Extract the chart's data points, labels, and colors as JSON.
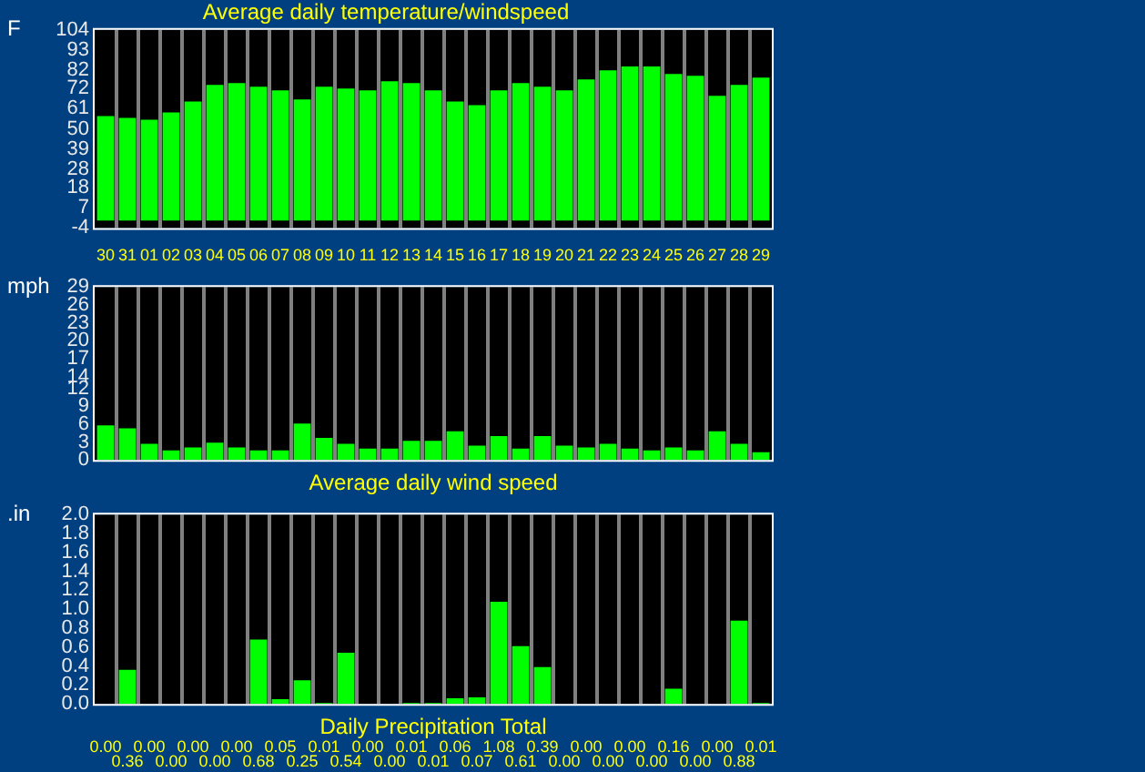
{
  "chart_data": [
    {
      "type": "bar",
      "title": "Average daily temperature/windspeed",
      "ylabel": "F",
      "categories": [
        "30",
        "31",
        "01",
        "02",
        "03",
        "04",
        "05",
        "06",
        "07",
        "08",
        "09",
        "10",
        "11",
        "12",
        "13",
        "14",
        "15",
        "16",
        "17",
        "18",
        "19",
        "20",
        "21",
        "22",
        "23",
        "24",
        "25",
        "26",
        "27",
        "28",
        "29"
      ],
      "values": [
        57,
        56,
        55,
        59,
        65,
        74,
        75,
        73,
        71,
        66,
        73,
        72,
        71,
        76,
        75,
        71,
        65,
        63,
        71,
        75,
        73,
        71,
        77,
        82,
        84,
        84,
        80,
        79,
        68,
        74,
        78
      ],
      "color": "#00ff00",
      "ylim": [
        -4,
        104
      ],
      "yticks": [
        -4,
        7,
        18,
        28,
        39,
        50,
        61,
        72,
        82,
        93,
        104
      ],
      "grid": "x"
    },
    {
      "type": "bar",
      "xlabel": "Average daily wind speed",
      "ylabel": "mph",
      "categories": [
        "30",
        "31",
        "01",
        "02",
        "03",
        "04",
        "05",
        "06",
        "07",
        "08",
        "09",
        "10",
        "11",
        "12",
        "13",
        "14",
        "15",
        "16",
        "17",
        "18",
        "19",
        "20",
        "21",
        "22",
        "23",
        "24",
        "25",
        "26",
        "27",
        "28",
        "29"
      ],
      "values": [
        5.8,
        5.3,
        2.7,
        1.6,
        2.1,
        2.9,
        2.1,
        1.6,
        1.6,
        6.1,
        3.7,
        2.7,
        1.9,
        1.9,
        3.2,
        3.2,
        4.8,
        2.4,
        4.0,
        1.9,
        4.0,
        2.4,
        2.1,
        2.7,
        1.9,
        1.6,
        2.1,
        1.6,
        4.8,
        2.7,
        1.3
      ],
      "color": "#00ff00",
      "ylim": [
        0,
        29
      ],
      "yticks": [
        0,
        3,
        6,
        9,
        12,
        14,
        17,
        20,
        23,
        26,
        29
      ],
      "grid": "x",
      "tick_labels": "y"
    },
    {
      "type": "bar",
      "xlabel": "Daily Precipitation Total",
      "ylabel": ".in",
      "categories": [
        "30",
        "31",
        "01",
        "02",
        "03",
        "04",
        "05",
        "06",
        "07",
        "08",
        "09",
        "10",
        "11",
        "12",
        "13",
        "14",
        "15",
        "16",
        "17",
        "18",
        "19",
        "20",
        "21",
        "22",
        "23",
        "24",
        "25",
        "26",
        "27",
        "28",
        "29"
      ],
      "values": [
        0,
        0.36,
        0,
        0,
        0,
        0,
        0,
        0.68,
        0.05,
        0.25,
        0.01,
        0.54,
        0,
        0,
        0.01,
        0.01,
        0.06,
        0.07,
        1.08,
        0.61,
        0.39,
        0,
        0,
        0,
        0,
        0,
        0.16,
        0,
        0,
        0.88,
        0.01
      ],
      "value_labels": [
        "0.00",
        "0.36",
        "0.00",
        "0.00",
        "0.00",
        "0.00",
        "0.00",
        "0.68",
        "0.05",
        "0.25",
        "0.01",
        "0.54",
        "0.00",
        "0.00",
        "0.01",
        "0.01",
        "0.06",
        "0.07",
        "1.08",
        "0.61",
        "0.39",
        "0.00",
        "0.00",
        "0.00",
        "0.00",
        "0.00",
        "0.16",
        "0.00",
        "0.00",
        "0.88",
        "0.01"
      ],
      "color": "#00ff00",
      "ylim": [
        0,
        2
      ],
      "yticks": [
        {
          "value": 0,
          "label": "0.0"
        },
        0.2,
        0.4,
        0.6,
        0.8,
        {
          "value": 1,
          "label": "1.0"
        },
        1.2,
        1.4,
        1.6,
        1.8,
        {
          "value": 2,
          "label": "2.0"
        }
      ],
      "grid": "x",
      "tick_labels": "y"
    }
  ]
}
